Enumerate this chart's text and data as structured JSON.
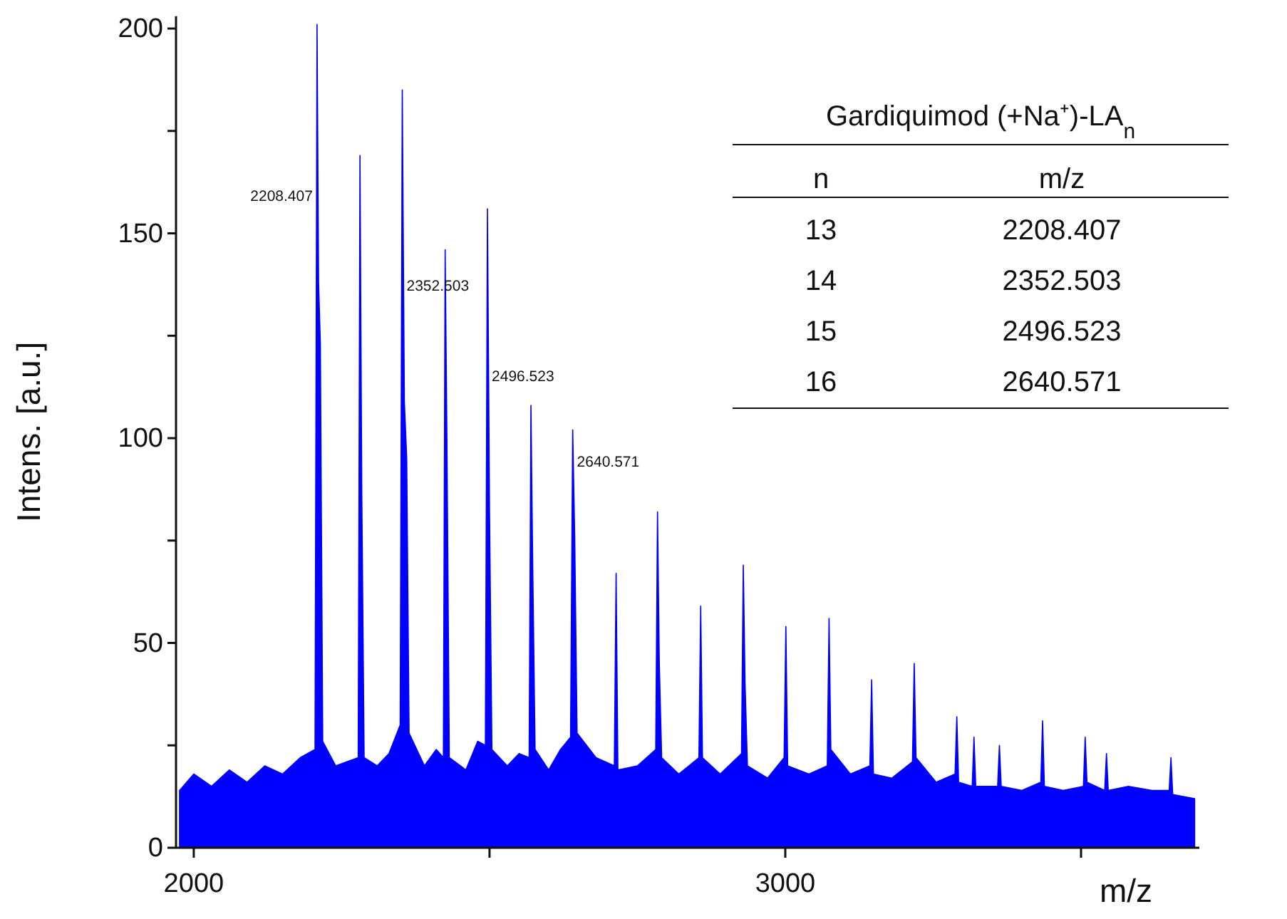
{
  "chart_data": {
    "type": "area",
    "xlabel": "m/z",
    "ylabel": "Intens. [a.u.]",
    "xlim": [
      1970,
      3700
    ],
    "ylim": [
      0,
      203
    ],
    "xticks": [
      2000,
      {
        "value": 2500,
        "label": null
      },
      3000,
      {
        "value": 3500,
        "label": null
      }
    ],
    "yticks": [
      0,
      {
        "value": 25,
        "label": null
      },
      50,
      {
        "value": 75,
        "label": null
      },
      100,
      {
        "value": 125,
        "label": null
      },
      150,
      {
        "value": 175,
        "label": null
      },
      200
    ],
    "series": [
      {
        "color": "#0000ff",
        "x": [
          1976,
          2000,
          2030,
          2060,
          2090,
          2120,
          2150,
          2180,
          2205,
          2208.4,
          2211,
          2214,
          2218,
          2240,
          2278,
          2281,
          2284,
          2288,
          2310,
          2330,
          2349,
          2352.5,
          2356,
          2360,
          2364,
          2390,
          2410,
          2422,
          2425,
          2428,
          2432,
          2460,
          2480,
          2493,
          2496.5,
          2500,
          2504,
          2530,
          2550,
          2567,
          2570,
          2573,
          2577,
          2600,
          2620,
          2637,
          2640.6,
          2644,
          2648,
          2680,
          2711,
          2714,
          2717,
          2750,
          2781,
          2784,
          2787,
          2791,
          2820,
          2854,
          2857,
          2860,
          2890,
          2926,
          2929,
          2932,
          2936,
          2970,
          2998,
          3001,
          3004,
          3040,
          3071,
          3074,
          3077,
          3110,
          3143,
          3146,
          3149,
          3180,
          3215,
          3218,
          3221,
          3255,
          3287,
          3290,
          3293,
          3316,
          3319,
          3322,
          3359,
          3362,
          3365,
          3400,
          3432,
          3435,
          3438,
          3470,
          3504,
          3507,
          3510,
          3540,
          3543,
          3546,
          3580,
          3620,
          3649,
          3652,
          3655,
          3692
        ],
        "values": [
          14,
          18,
          15,
          19,
          16,
          20,
          18,
          22,
          24,
          201,
          138,
          123,
          26,
          20,
          22,
          169,
          87,
          22,
          20,
          23,
          30,
          185,
          109,
          95,
          28,
          20,
          24,
          22,
          146,
          99,
          22,
          19,
          26,
          25,
          156,
          82,
          24,
          20,
          23,
          22,
          108,
          69,
          24,
          19,
          24,
          27,
          102,
          76,
          28,
          22,
          20,
          67,
          19,
          20,
          24,
          82,
          45,
          22,
          18,
          22,
          59,
          22,
          18,
          23,
          69,
          40,
          20,
          17,
          22,
          54,
          20,
          18,
          20,
          56,
          24,
          18,
          20,
          41,
          18,
          17,
          21,
          45,
          22,
          16,
          18,
          32,
          16,
          15,
          27,
          15,
          15,
          25,
          15,
          14,
          16,
          31,
          15,
          14,
          15,
          27,
          16,
          14,
          23,
          14,
          15,
          14,
          14,
          22,
          13,
          12
        ]
      }
    ],
    "annotations": [
      {
        "text": "2208.407",
        "x": 2208.407,
        "y": 158
      },
      {
        "text": "2352.503",
        "x": 2352.503,
        "y": 136
      },
      {
        "text": "2496.523",
        "x": 2496.523,
        "y": 114
      },
      {
        "text": "2640.571",
        "x": 2640.571,
        "y": 93
      },
      "Gardiquimod (+Na⁺)-LA$_{n}$",
      "n",
      "m/z",
      "13",
      "2208.407",
      "14",
      "2352.503",
      "15",
      "2496.523",
      "16",
      "2640.571"
    ]
  }
}
